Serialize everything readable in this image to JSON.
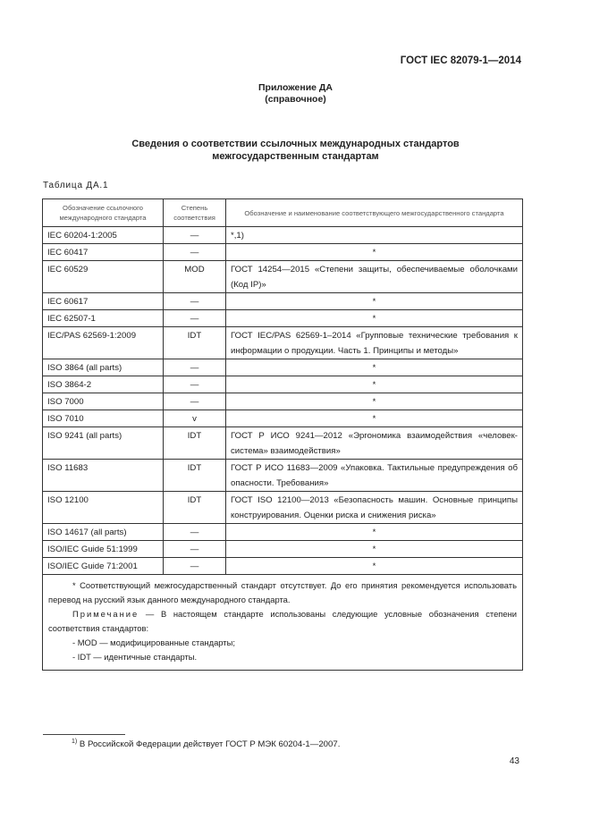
{
  "header": {
    "doc_code": "ГОСТ IEC 82079-1—2014"
  },
  "annex": {
    "title": "Приложение ДА",
    "subtitle": "(справочное)"
  },
  "section_title": {
    "line1": "Сведения о соответствии ссылочных международных стандартов",
    "line2": "межгосударственным стандартам"
  },
  "table": {
    "caption": "Таблица ДА.1",
    "columns": [
      "Обозначение ссылочного международного стандарта",
      "Степень соответствия",
      "Обозначение и наименование соответствующего межгосударственного стандарта"
    ],
    "rows": [
      {
        "ref": "IEC 60204-1:2005",
        "degree": "—",
        "gost": "*,1)"
      },
      {
        "ref": "IEC 60417",
        "degree": "—",
        "gost": "*"
      },
      {
        "ref": "IEC 60529",
        "degree": "MOD",
        "gost": "ГОСТ 14254—2015 «Степени защиты, обеспечиваемые оболочками (Код IP)»"
      },
      {
        "ref": "IEC 60617",
        "degree": "—",
        "gost": "*"
      },
      {
        "ref": "IEC 62507-1",
        "degree": "—",
        "gost": "*"
      },
      {
        "ref": "IEC/PAS 62569-1:2009",
        "degree": "IDT",
        "gost": "ГОСТ IEC/PAS 62569-1–2014 «Групповые технические требования к информации о продукции. Часть 1. Принципы и методы»"
      },
      {
        "ref": "ISO 3864 (all parts)",
        "degree": "—",
        "gost": "*"
      },
      {
        "ref": "ISO 3864-2",
        "degree": "—",
        "gost": "*"
      },
      {
        "ref": "ISO 7000",
        "degree": "—",
        "gost": "*"
      },
      {
        "ref": "ISO 7010",
        "degree": "v",
        "gost": "*"
      },
      {
        "ref": "ISO 9241 (all parts)",
        "degree": "IDT",
        "gost": "ГОСТ Р ИСО 9241—2012 «Эргономика взаимодействия «человек-система» взаимодействия»"
      },
      {
        "ref": "ISO 11683",
        "degree": "IDT",
        "gost": "ГОСТ Р ИСО 11683—2009 «Упаковка. Тактильные предупреждения об опасности. Требования»"
      },
      {
        "ref": "ISO 12100",
        "degree": "IDT",
        "gost": "ГОСТ ISO 12100—2013 «Безопасность машин. Основные принципы конструирования. Оценки риска и снижения риска»"
      },
      {
        "ref": "ISO 14617 (all parts)",
        "degree": "—",
        "gost": "*"
      },
      {
        "ref": "ISO/IEC Guide 51:1999",
        "degree": "—",
        "gost": "*"
      },
      {
        "ref": "ISO/IEC Guide 71:2001",
        "degree": "—",
        "gost": "*"
      }
    ],
    "notes": {
      "asterisk": "* Соответствующий межгосударственный стандарт отсутствует. До его принятия рекомендуется использовать перевод на русский язык данного международного стандарта.",
      "note_label": "Примечание",
      "note_text": " — В настоящем стандарте использованы следующие условные обозначения степени соответствия стандартов:",
      "items": [
        "- MOD — модифицированные стандарты;",
        "- IDT — идентичные стандарты."
      ]
    }
  },
  "footnote": {
    "mark": "1)",
    "text": " В Российской Федерации действует ГОСТ Р МЭК 60204-1—2007."
  },
  "page_number": "43"
}
